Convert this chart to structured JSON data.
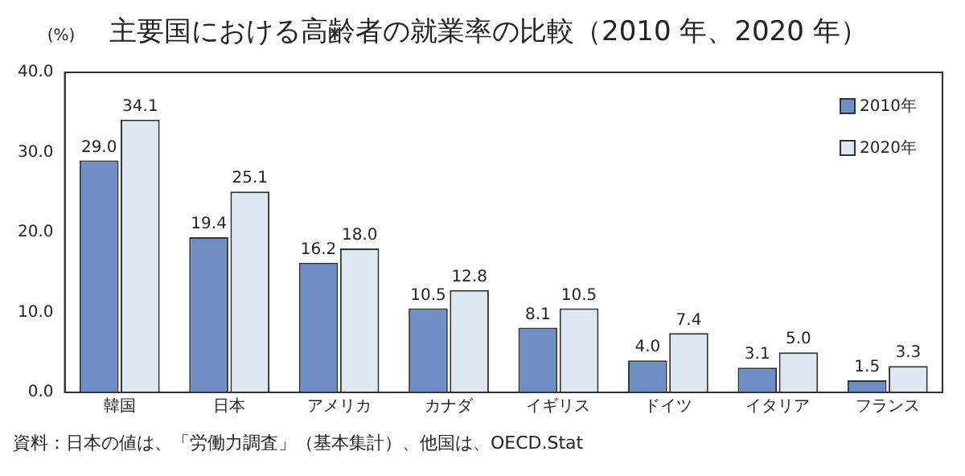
{
  "chart_data": {
    "type": "bar",
    "title": "主要国における高齢者の就業率の比較（2010 年、2020 年）",
    "ylabel": "(%)",
    "categories": [
      "韓国",
      "日本",
      "アメリカ",
      "カナダ",
      "イギリス",
      "ドイツ",
      "イタリア",
      "フランス"
    ],
    "series": [
      {
        "name": "2010年",
        "color": "#6f8fc4",
        "values": [
          29.0,
          19.4,
          16.2,
          10.5,
          8.1,
          4.0,
          3.1,
          1.5
        ],
        "value_labels": [
          "29.0",
          "19.4",
          "16.2",
          "10.5",
          "8.1",
          "4.0",
          "3.1",
          "1.5"
        ]
      },
      {
        "name": "2020年",
        "color": "#dfe7f3",
        "values": [
          34.1,
          25.1,
          18.0,
          12.8,
          10.5,
          7.4,
          5.0,
          3.3
        ],
        "value_labels": [
          "34.1",
          "25.1",
          "18.0",
          "12.8",
          "10.5",
          "7.4",
          "5.0",
          "3.3"
        ]
      }
    ],
    "ylim": [
      0,
      40
    ],
    "yticks": [
      {
        "value": 0,
        "label": "0.0"
      },
      {
        "value": 10,
        "label": "10.0"
      },
      {
        "value": 20,
        "label": "20.0"
      },
      {
        "value": 30,
        "label": "30.0"
      },
      {
        "value": 40,
        "label": "40.0"
      }
    ],
    "grid": false,
    "legend": "top right",
    "annotations": [
      "資料：日本の値は、「労働力調査」（基本集計）、他国は、OECD.Stat"
    ]
  }
}
